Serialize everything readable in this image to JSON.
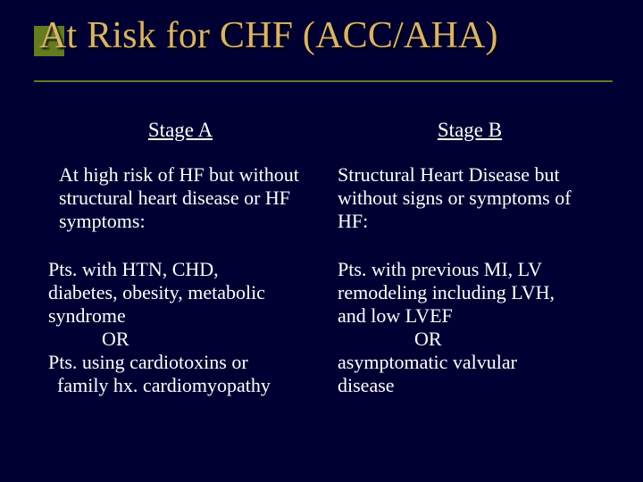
{
  "colors": {
    "background": "#000033",
    "title_text": "#d9b36a",
    "accent": "#657b1f",
    "body_text": "#ffffff"
  },
  "title": "At Risk for CHF (ACC/AHA)",
  "left": {
    "stage": "Stage A",
    "intro": "At high risk of HF but without structural heart disease or HF symptoms:",
    "pt1_l1": "Pts. with HTN, CHD,",
    "pt1_l2": "diabetes, obesity, metabolic",
    "pt1_l3": "syndrome",
    "or": "OR",
    "pt2_l1": "Pts. using cardiotoxins or",
    "pt2_l2": "family hx. cardiomyopathy"
  },
  "right": {
    "stage": "Stage B",
    "intro": "Structural Heart Disease but without signs or symptoms of HF:",
    "pt1_l1": "Pts. with previous MI, LV",
    "pt1_l2": "remodeling including LVH,",
    "pt1_l3": "and low LVEF",
    "or": "OR",
    "pt2_l1": "asymptomatic valvular",
    "pt2_l2": "disease"
  }
}
